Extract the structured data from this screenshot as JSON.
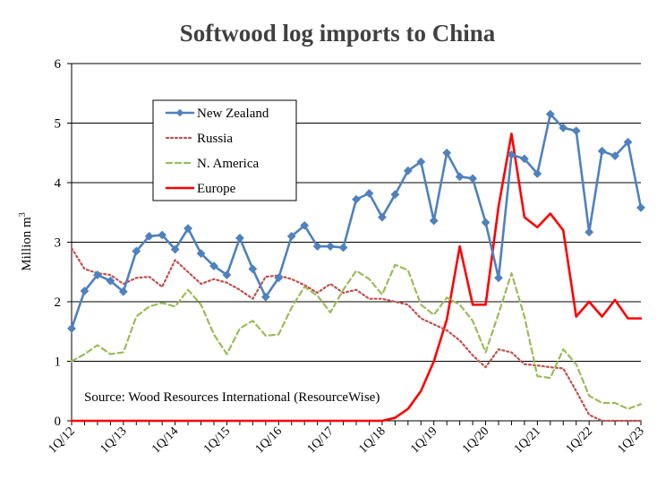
{
  "chart_data": {
    "type": "line",
    "title": "Softwood log imports to China",
    "ylabel": "Million m",
    "ylabel_superscript": "3",
    "xlabel": "",
    "ylim": [
      0,
      6
    ],
    "yticks": [
      0,
      1,
      2,
      3,
      4,
      5,
      6
    ],
    "grid": "horizontal",
    "legend_position": "top-left",
    "source_note": "Source: Wood Resources International (ResourceWise)",
    "x_tick_labels": [
      "1Q/12",
      "1Q/13",
      "1Q/14",
      "1Q/15",
      "1Q/16",
      "1Q/17",
      "1Q/18",
      "1Q/19",
      "1Q/20",
      "1Q/21",
      "1Q/22",
      "1Q/23"
    ],
    "x_tick_stride": 4,
    "n_points": 45,
    "series": [
      {
        "name": "New Zealand",
        "color": "#4f81bd",
        "style": "solid-marker",
        "values": [
          1.55,
          2.18,
          2.45,
          2.35,
          2.17,
          2.85,
          3.1,
          3.12,
          2.88,
          3.23,
          2.81,
          2.6,
          2.45,
          3.07,
          2.55,
          2.08,
          2.4,
          3.1,
          3.28,
          2.93,
          2.93,
          2.91,
          3.72,
          3.82,
          3.42,
          3.8,
          4.2,
          4.35,
          3.36,
          4.5,
          4.1,
          4.07,
          3.33,
          2.4,
          4.47,
          4.4,
          4.15,
          5.15,
          4.92,
          4.87,
          3.17,
          4.53,
          4.45,
          4.68,
          3.58
        ]
      },
      {
        "name": "Russia",
        "color": "#c0504d",
        "style": "dotted",
        "values": [
          2.9,
          2.55,
          2.48,
          2.45,
          2.3,
          2.4,
          2.42,
          2.25,
          2.7,
          2.5,
          2.3,
          2.38,
          2.32,
          2.2,
          2.05,
          2.42,
          2.44,
          2.38,
          2.28,
          2.15,
          2.3,
          2.15,
          2.2,
          2.05,
          2.05,
          2.0,
          1.95,
          1.72,
          1.62,
          1.52,
          1.35,
          1.1,
          0.9,
          1.2,
          1.15,
          0.95,
          0.93,
          0.9,
          0.88,
          0.5,
          0.1,
          0.0,
          0.0,
          0.0,
          0.0
        ]
      },
      {
        "name": "N. America",
        "color": "#9bbb59",
        "style": "dashed",
        "values": [
          1.0,
          1.12,
          1.27,
          1.12,
          1.15,
          1.75,
          1.92,
          1.98,
          1.92,
          2.2,
          1.95,
          1.45,
          1.12,
          1.55,
          1.68,
          1.43,
          1.45,
          1.9,
          2.25,
          2.1,
          1.82,
          2.2,
          2.52,
          2.38,
          2.12,
          2.62,
          2.53,
          1.95,
          1.78,
          2.07,
          1.95,
          1.68,
          1.15,
          1.8,
          2.48,
          1.75,
          0.75,
          0.72,
          1.2,
          0.95,
          0.42,
          0.3,
          0.3,
          0.2,
          0.28
        ]
      },
      {
        "name": "Europe",
        "color": "#ff0000",
        "style": "solid",
        "values": [
          0.0,
          0.0,
          0.0,
          0.0,
          0.0,
          0.0,
          0.0,
          0.0,
          0.0,
          0.0,
          0.0,
          0.0,
          0.0,
          0.0,
          0.0,
          0.0,
          0.0,
          0.0,
          0.0,
          0.0,
          0.0,
          0.0,
          0.0,
          0.0,
          0.0,
          0.05,
          0.2,
          0.5,
          1.0,
          1.7,
          2.93,
          1.95,
          1.95,
          3.6,
          4.82,
          3.42,
          3.25,
          3.48,
          3.2,
          1.75,
          2.0,
          1.75,
          2.03,
          1.72,
          1.72
        ]
      }
    ]
  }
}
